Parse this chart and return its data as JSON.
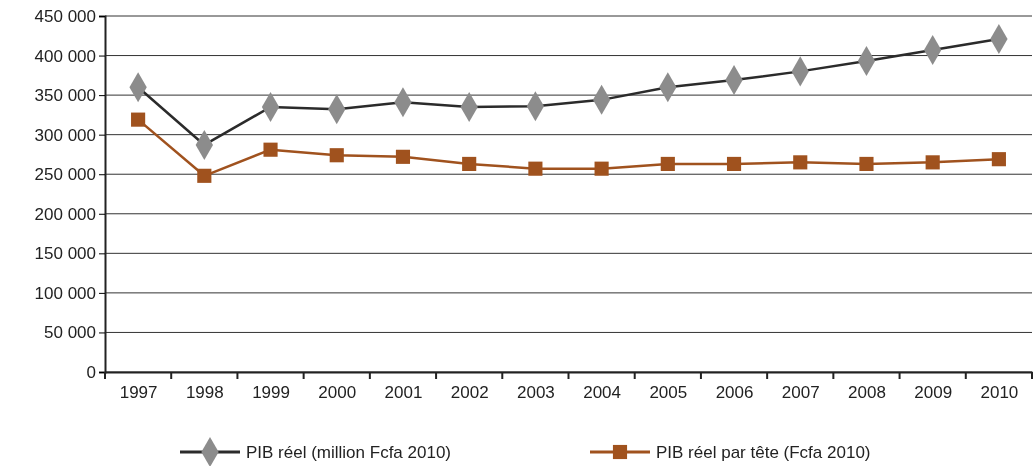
{
  "chart_data": {
    "type": "line",
    "categories": [
      "1997",
      "1998",
      "1999",
      "2000",
      "2001",
      "2002",
      "2003",
      "2004",
      "2005",
      "2006",
      "2007",
      "2008",
      "2009",
      "2010"
    ],
    "series": [
      {
        "name": "PIB réel (million Fcfa 2010)",
        "color": "#2b2b2b",
        "colors": [
          "#8c8c8c",
          "#8c8c8c",
          "#8c8c8c",
          "#8c8c8c",
          "#8c8c8c",
          "#8c8c8c",
          "#8c8c8c",
          "#8c8c8c",
          "#8c8c8c",
          "#8c8c8c",
          "#8c8c8c",
          "#8c8c8c",
          "#8c8c8c",
          "#8c8c8c"
        ],
        "marker": "diamond",
        "values": [
          360000,
          287000,
          335000,
          332000,
          341000,
          335000,
          336000,
          344000,
          360000,
          369000,
          380000,
          393000,
          407000,
          421000
        ]
      },
      {
        "name": "PIB réel par tête (Fcfa 2010)",
        "color": "#a0521e",
        "marker": "square",
        "values": [
          319000,
          248000,
          281000,
          274000,
          272000,
          263000,
          257000,
          257000,
          263000,
          263000,
          265000,
          263000,
          265000,
          269000
        ]
      }
    ],
    "ylim": [
      0,
      450000
    ],
    "yticks": [
      {
        "value": 0,
        "label": "0"
      },
      {
        "value": 50000,
        "label": "50 000"
      },
      {
        "value": 100000,
        "label": "100 000"
      },
      {
        "value": 150000,
        "label": "150 000"
      },
      {
        "value": 200000,
        "label": "200 000"
      },
      {
        "value": 250000,
        "label": "250 000"
      },
      {
        "value": 300000,
        "label": "300 000"
      },
      {
        "value": 350000,
        "label": "350 000"
      },
      {
        "value": 400000,
        "label": "400 000"
      },
      {
        "value": 450000,
        "label": "450 000"
      }
    ],
    "grid": "y",
    "legend": "bottom"
  }
}
